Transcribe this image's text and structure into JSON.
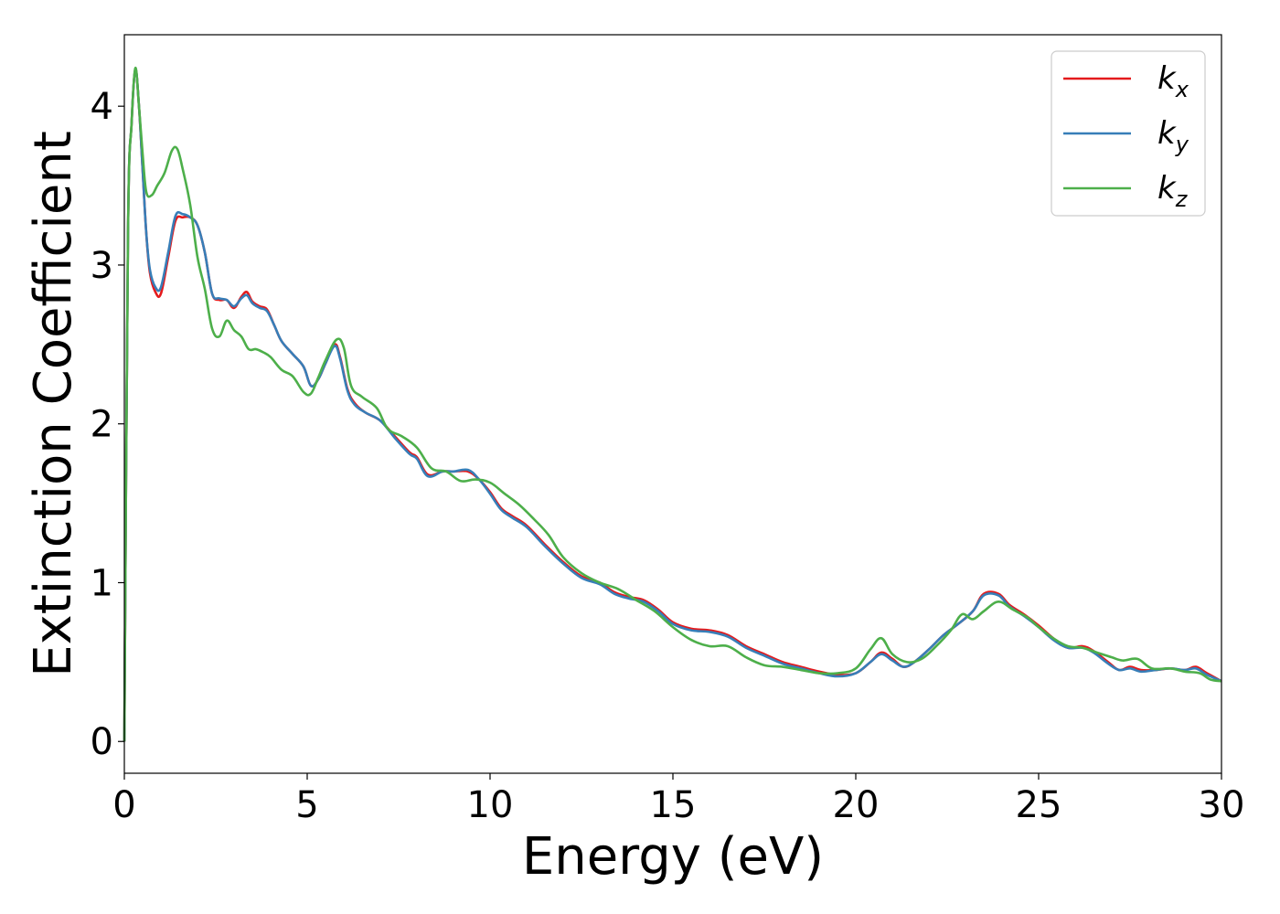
{
  "chart_data": {
    "type": "line",
    "title": "",
    "xlabel": "Energy (eV)",
    "ylabel": "Extinction Coefficient",
    "xlim": [
      0,
      30
    ],
    "ylim": [
      -0.2,
      4.45
    ],
    "xticks": [
      0,
      5,
      10,
      15,
      20,
      25,
      30
    ],
    "yticks": [
      0,
      1,
      2,
      3,
      4
    ],
    "grid": false,
    "legend_position": "top-right",
    "series": [
      {
        "name": "k_x",
        "label_base": "k",
        "label_sub": "x",
        "color": "#e41a1c",
        "x": [
          0,
          0.1,
          0.2,
          0.3,
          0.4,
          0.5,
          0.6,
          0.7,
          0.85,
          1.0,
          1.2,
          1.4,
          1.6,
          1.8,
          2.0,
          2.2,
          2.4,
          2.6,
          2.8,
          3.0,
          3.2,
          3.35,
          3.5,
          3.7,
          3.9,
          4.1,
          4.3,
          4.6,
          4.9,
          5.1,
          5.3,
          5.5,
          5.75,
          5.9,
          6.1,
          6.3,
          6.6,
          7.0,
          7.4,
          7.8,
          8.0,
          8.3,
          8.7,
          9.0,
          9.4,
          9.7,
          10.0,
          10.3,
          10.6,
          11.0,
          11.5,
          12.0,
          12.5,
          13.0,
          13.4,
          13.8,
          14.2,
          14.6,
          15.0,
          15.5,
          16.0,
          16.5,
          17.0,
          17.5,
          18.0,
          18.5,
          19.0,
          19.5,
          20.0,
          20.4,
          20.7,
          21.0,
          21.3,
          21.6,
          22.0,
          22.4,
          22.8,
          23.2,
          23.5,
          23.9,
          24.2,
          24.6,
          25.0,
          25.4,
          25.8,
          26.2,
          26.5,
          26.9,
          27.2,
          27.5,
          27.8,
          28.2,
          28.6,
          29.0,
          29.3,
          29.6,
          30.0
        ],
        "y": [
          0.0,
          3.2,
          3.9,
          4.23,
          4.0,
          3.6,
          3.2,
          2.95,
          2.83,
          2.82,
          3.05,
          3.28,
          3.3,
          3.3,
          3.25,
          3.08,
          2.82,
          2.78,
          2.78,
          2.73,
          2.8,
          2.83,
          2.77,
          2.74,
          2.72,
          2.62,
          2.52,
          2.44,
          2.36,
          2.24,
          2.28,
          2.38,
          2.5,
          2.42,
          2.22,
          2.13,
          2.07,
          2.02,
          1.92,
          1.82,
          1.79,
          1.68,
          1.7,
          1.7,
          1.7,
          1.65,
          1.57,
          1.47,
          1.42,
          1.36,
          1.24,
          1.13,
          1.04,
          1.0,
          0.94,
          0.91,
          0.89,
          0.83,
          0.75,
          0.71,
          0.7,
          0.67,
          0.6,
          0.55,
          0.5,
          0.47,
          0.44,
          0.42,
          0.43,
          0.5,
          0.56,
          0.52,
          0.47,
          0.5,
          0.58,
          0.67,
          0.74,
          0.82,
          0.93,
          0.93,
          0.86,
          0.8,
          0.73,
          0.65,
          0.59,
          0.6,
          0.57,
          0.5,
          0.45,
          0.47,
          0.45,
          0.45,
          0.46,
          0.45,
          0.47,
          0.43,
          0.38
        ]
      },
      {
        "name": "k_y",
        "label_base": "k",
        "label_sub": "y",
        "color": "#377eb8",
        "x": [
          0,
          0.1,
          0.2,
          0.3,
          0.4,
          0.5,
          0.6,
          0.7,
          0.85,
          1.0,
          1.2,
          1.4,
          1.6,
          1.8,
          2.0,
          2.2,
          2.4,
          2.6,
          2.8,
          3.0,
          3.2,
          3.35,
          3.5,
          3.7,
          3.9,
          4.1,
          4.3,
          4.6,
          4.9,
          5.1,
          5.3,
          5.5,
          5.75,
          5.9,
          6.1,
          6.3,
          6.6,
          7.0,
          7.4,
          7.8,
          8.0,
          8.3,
          8.7,
          9.0,
          9.4,
          9.7,
          10.0,
          10.3,
          10.6,
          11.0,
          11.5,
          12.0,
          12.5,
          13.0,
          13.4,
          13.8,
          14.2,
          14.6,
          15.0,
          15.5,
          16.0,
          16.5,
          17.0,
          17.5,
          18.0,
          18.5,
          19.0,
          19.5,
          20.0,
          20.4,
          20.7,
          21.0,
          21.3,
          21.6,
          22.0,
          22.4,
          22.8,
          23.2,
          23.5,
          23.9,
          24.2,
          24.6,
          25.0,
          25.4,
          25.8,
          26.2,
          26.5,
          26.9,
          27.2,
          27.5,
          27.8,
          28.2,
          28.6,
          29.0,
          29.3,
          29.6,
          30.0
        ],
        "y": [
          0.0,
          3.2,
          3.9,
          4.23,
          4.0,
          3.6,
          3.2,
          2.97,
          2.86,
          2.86,
          3.08,
          3.31,
          3.32,
          3.3,
          3.25,
          3.08,
          2.82,
          2.79,
          2.78,
          2.74,
          2.79,
          2.81,
          2.76,
          2.73,
          2.71,
          2.62,
          2.52,
          2.44,
          2.36,
          2.24,
          2.28,
          2.38,
          2.49,
          2.41,
          2.21,
          2.12,
          2.07,
          2.02,
          1.91,
          1.81,
          1.78,
          1.67,
          1.7,
          1.7,
          1.71,
          1.65,
          1.56,
          1.46,
          1.41,
          1.35,
          1.23,
          1.12,
          1.03,
          0.99,
          0.93,
          0.9,
          0.88,
          0.82,
          0.74,
          0.7,
          0.69,
          0.66,
          0.59,
          0.54,
          0.49,
          0.46,
          0.43,
          0.41,
          0.43,
          0.5,
          0.55,
          0.51,
          0.47,
          0.5,
          0.58,
          0.67,
          0.74,
          0.82,
          0.92,
          0.92,
          0.85,
          0.79,
          0.72,
          0.64,
          0.59,
          0.59,
          0.56,
          0.49,
          0.45,
          0.46,
          0.44,
          0.45,
          0.46,
          0.45,
          0.46,
          0.42,
          0.38
        ]
      },
      {
        "name": "k_z",
        "label_base": "k",
        "label_sub": "z",
        "color": "#4daf4a",
        "x": [
          0,
          0.1,
          0.2,
          0.3,
          0.4,
          0.5,
          0.6,
          0.75,
          0.9,
          1.1,
          1.3,
          1.45,
          1.6,
          1.8,
          2.0,
          2.2,
          2.4,
          2.6,
          2.8,
          3.0,
          3.2,
          3.4,
          3.6,
          3.8,
          4.0,
          4.3,
          4.6,
          4.9,
          5.1,
          5.3,
          5.5,
          5.8,
          6.0,
          6.2,
          6.5,
          6.9,
          7.2,
          7.6,
          8.0,
          8.4,
          8.8,
          9.2,
          9.6,
          10.0,
          10.4,
          10.8,
          11.2,
          11.6,
          12.0,
          12.5,
          13.0,
          13.5,
          14.0,
          14.5,
          15.0,
          15.5,
          16.0,
          16.5,
          17.0,
          17.5,
          18.0,
          18.5,
          19.0,
          19.5,
          20.0,
          20.4,
          20.7,
          21.0,
          21.4,
          21.8,
          22.2,
          22.6,
          22.9,
          23.2,
          23.5,
          23.9,
          24.3,
          24.7,
          25.0,
          25.4,
          25.8,
          26.2,
          26.6,
          27.0,
          27.3,
          27.7,
          28.1,
          28.6,
          29.0,
          29.4,
          29.7,
          30.0
        ],
        "y": [
          0.0,
          3.2,
          3.9,
          4.24,
          4.0,
          3.7,
          3.46,
          3.44,
          3.5,
          3.58,
          3.72,
          3.73,
          3.6,
          3.38,
          3.05,
          2.85,
          2.6,
          2.55,
          2.65,
          2.59,
          2.55,
          2.47,
          2.47,
          2.45,
          2.42,
          2.34,
          2.3,
          2.2,
          2.19,
          2.29,
          2.4,
          2.53,
          2.48,
          2.24,
          2.17,
          2.1,
          1.97,
          1.92,
          1.85,
          1.72,
          1.7,
          1.64,
          1.65,
          1.63,
          1.56,
          1.49,
          1.4,
          1.3,
          1.16,
          1.06,
          1.0,
          0.96,
          0.89,
          0.82,
          0.72,
          0.64,
          0.6,
          0.6,
          0.53,
          0.48,
          0.47,
          0.45,
          0.43,
          0.43,
          0.46,
          0.58,
          0.65,
          0.55,
          0.5,
          0.52,
          0.6,
          0.7,
          0.8,
          0.77,
          0.82,
          0.88,
          0.83,
          0.78,
          0.72,
          0.65,
          0.6,
          0.59,
          0.56,
          0.53,
          0.51,
          0.52,
          0.46,
          0.46,
          0.44,
          0.43,
          0.39,
          0.38
        ]
      }
    ]
  }
}
